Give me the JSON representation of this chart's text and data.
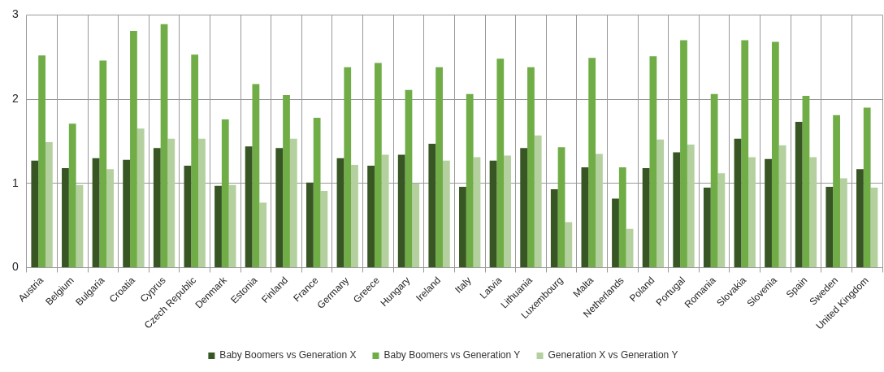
{
  "chart_data": {
    "type": "bar",
    "categories": [
      "Austria",
      "Belgium",
      "Bulgaria",
      "Croatia",
      "Cyprus",
      "Czech Republic",
      "Denmark",
      "Estonia",
      "Finland",
      "France",
      "Germany",
      "Greece",
      "Hungary",
      "Ireland",
      "Italy",
      "Latvia",
      "Lithuania",
      "Luxembourg",
      "Malta",
      "Netherlands",
      "Poland",
      "Portugal",
      "Romania",
      "Slovakia",
      "Slovenia",
      "Spain",
      "Sweden",
      "United Kingdom"
    ],
    "series": [
      {
        "name": "Baby Boomers vs Generation X",
        "color": "#375623",
        "values": [
          1.27,
          1.18,
          1.3,
          1.28,
          1.42,
          1.21,
          0.97,
          1.44,
          1.42,
          1.01,
          1.3,
          1.21,
          1.34,
          1.47,
          0.96,
          1.27,
          1.42,
          0.93,
          1.19,
          0.82,
          1.18,
          1.37,
          0.95,
          1.53,
          1.29,
          1.73,
          0.96,
          1.17
        ]
      },
      {
        "name": "Baby Boomers vs Generation Y",
        "color": "#70ad47",
        "values": [
          2.52,
          1.71,
          2.46,
          2.81,
          2.89,
          2.53,
          1.76,
          2.18,
          2.05,
          1.78,
          2.38,
          2.43,
          2.11,
          2.38,
          2.06,
          2.48,
          2.38,
          1.43,
          2.49,
          1.19,
          2.51,
          2.7,
          2.06,
          2.7,
          2.68,
          2.04,
          1.81,
          1.9
        ]
      },
      {
        "name": "Generation X vs Generation Y",
        "color": "#b4d09f",
        "values": [
          1.49,
          0.98,
          1.17,
          1.65,
          1.53,
          1.53,
          0.98,
          0.77,
          1.53,
          0.91,
          1.22,
          1.34,
          1.0,
          1.27,
          1.31,
          1.33,
          1.57,
          0.54,
          1.35,
          0.46,
          1.52,
          1.46,
          1.12,
          1.31,
          1.45,
          1.31,
          1.06,
          0.95
        ]
      }
    ],
    "ylim": [
      0,
      3
    ],
    "yticks": [
      0,
      1,
      2,
      3
    ],
    "grid": true,
    "legend": "bottom"
  }
}
